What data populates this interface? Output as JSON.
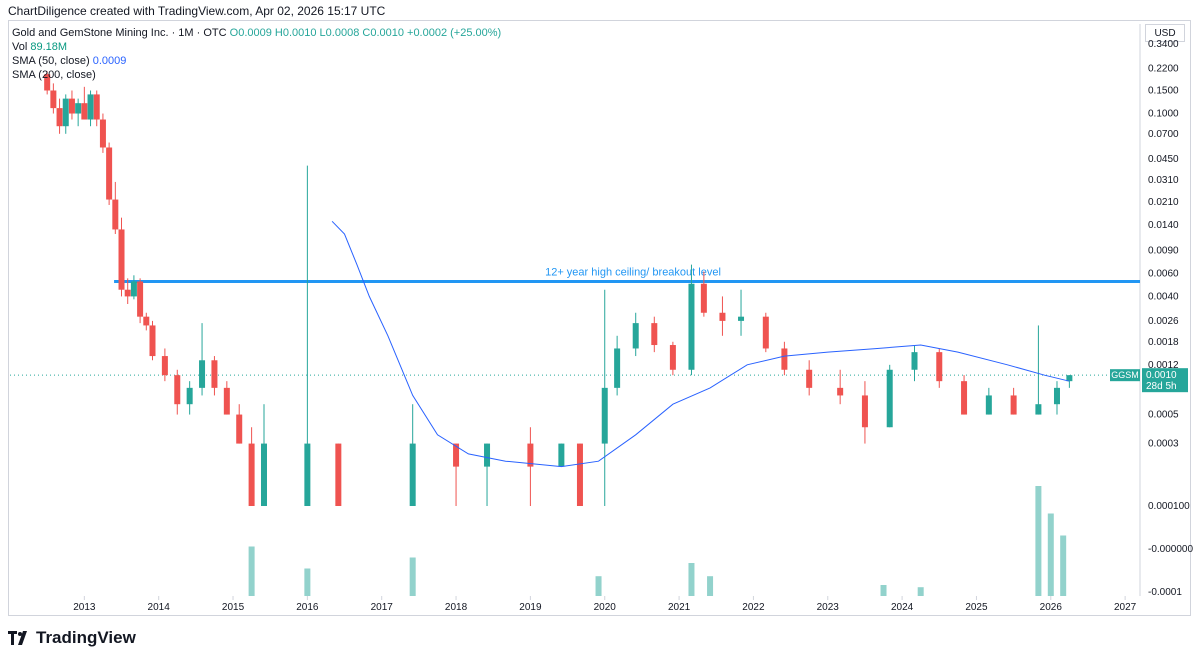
{
  "header": {
    "caption": "ChartDiligence created with TradingView.com, Apr 02, 2026 15:17 UTC"
  },
  "legend": {
    "symbol_line_prefix": "Gold and GemStone Mining Inc. · 1M · OTC",
    "ohlc": "O0.0009 H0.0010 L0.0008 C0.0010 +0.0002 (+25.00%)",
    "vol_label": "Vol",
    "vol_value": "89.18M",
    "sma50_label": "SMA (50, close)",
    "sma50_value": "0.0009",
    "sma200_label": "SMA (200, close)"
  },
  "price_axis": {
    "currency": "USD",
    "ticker_badge": "GGSM",
    "last_price": "0.0010",
    "countdown": "28d 5h"
  },
  "annotation": {
    "text": "12+ year high ceiling/ breakout level"
  },
  "footer": {
    "brand": "TradingView"
  },
  "colors": {
    "up": "#26a69a",
    "down": "#ef5350",
    "sma": "#2962ff",
    "level": "#2196f3"
  },
  "chart_data": {
    "type": "candlestick",
    "title": "Gold and GemStone Mining Inc. · 1M · OTC",
    "y_scale": "log",
    "y_ticks": [
      "0.3400",
      "0.2200",
      "0.1500",
      "0.1000",
      "0.0700",
      "0.0450",
      "0.0310",
      "0.0210",
      "0.0140",
      "0.0090",
      "0.0060",
      "0.0040",
      "0.0026",
      "0.0018",
      "0.0012",
      "0.0005",
      "0.0003",
      "0.000100",
      "-0.000000",
      "-0.0001"
    ],
    "x_ticks": [
      "2013",
      "2014",
      "2015",
      "2016",
      "2017",
      "2018",
      "2019",
      "2020",
      "2021",
      "2022",
      "2023",
      "2024",
      "2025",
      "2026",
      "2027"
    ],
    "horizontal_level": 0.0052,
    "last_close": 0.001,
    "candles": [
      {
        "t": "2012-07",
        "o": 0.2,
        "h": 0.21,
        "l": 0.14,
        "c": 0.15
      },
      {
        "t": "2012-08",
        "o": 0.15,
        "h": 0.17,
        "l": 0.1,
        "c": 0.11
      },
      {
        "t": "2012-09",
        "o": 0.11,
        "h": 0.13,
        "l": 0.07,
        "c": 0.08
      },
      {
        "t": "2012-10",
        "o": 0.08,
        "h": 0.14,
        "l": 0.07,
        "c": 0.13
      },
      {
        "t": "2012-11",
        "o": 0.13,
        "h": 0.15,
        "l": 0.09,
        "c": 0.1
      },
      {
        "t": "2012-12",
        "o": 0.1,
        "h": 0.13,
        "l": 0.08,
        "c": 0.12
      },
      {
        "t": "2013-01",
        "o": 0.12,
        "h": 0.16,
        "l": 0.09,
        "c": 0.09
      },
      {
        "t": "2013-02",
        "o": 0.09,
        "h": 0.15,
        "l": 0.08,
        "c": 0.14
      },
      {
        "t": "2013-03",
        "o": 0.14,
        "h": 0.15,
        "l": 0.08,
        "c": 0.09
      },
      {
        "t": "2013-04",
        "o": 0.09,
        "h": 0.1,
        "l": 0.05,
        "c": 0.055
      },
      {
        "t": "2013-05",
        "o": 0.055,
        "h": 0.06,
        "l": 0.02,
        "c": 0.022
      },
      {
        "t": "2013-06",
        "o": 0.022,
        "h": 0.03,
        "l": 0.012,
        "c": 0.013
      },
      {
        "t": "2013-07",
        "o": 0.013,
        "h": 0.016,
        "l": 0.004,
        "c": 0.0045
      },
      {
        "t": "2013-08",
        "o": 0.0045,
        "h": 0.0055,
        "l": 0.0035,
        "c": 0.004
      },
      {
        "t": "2013-09",
        "o": 0.004,
        "h": 0.0058,
        "l": 0.0038,
        "c": 0.0052
      },
      {
        "t": "2013-10",
        "o": 0.0052,
        "h": 0.0055,
        "l": 0.0025,
        "c": 0.0028
      },
      {
        "t": "2013-11",
        "o": 0.0028,
        "h": 0.003,
        "l": 0.0022,
        "c": 0.0024
      },
      {
        "t": "2013-12",
        "o": 0.0024,
        "h": 0.0026,
        "l": 0.0013,
        "c": 0.0014
      },
      {
        "t": "2014-02",
        "o": 0.0014,
        "h": 0.0016,
        "l": 0.0009,
        "c": 0.001
      },
      {
        "t": "2014-04",
        "o": 0.001,
        "h": 0.0011,
        "l": 0.0005,
        "c": 0.0006
      },
      {
        "t": "2014-06",
        "o": 0.0006,
        "h": 0.0009,
        "l": 0.0005,
        "c": 0.0008
      },
      {
        "t": "2014-08",
        "o": 0.0008,
        "h": 0.0025,
        "l": 0.0007,
        "c": 0.0013
      },
      {
        "t": "2014-10",
        "o": 0.0013,
        "h": 0.0014,
        "l": 0.0007,
        "c": 0.0008
      },
      {
        "t": "2014-12",
        "o": 0.0008,
        "h": 0.0009,
        "l": 0.0005,
        "c": 0.0005
      },
      {
        "t": "2015-02",
        "o": 0.0005,
        "h": 0.0006,
        "l": 0.0003,
        "c": 0.0003
      },
      {
        "t": "2015-04",
        "o": 0.0003,
        "h": 0.0004,
        "l": 0.0001,
        "c": 0.0001
      },
      {
        "t": "2015-06",
        "o": 0.0001,
        "h": 0.0006,
        "l": 0.0001,
        "c": 0.0003
      },
      {
        "t": "2016-01",
        "o": 0.0001,
        "h": 0.04,
        "l": 0.0001,
        "c": 0.0003
      },
      {
        "t": "2016-06",
        "o": 0.0003,
        "h": 0.0003,
        "l": 0.0001,
        "c": 0.0001
      },
      {
        "t": "2017-06",
        "o": 0.0001,
        "h": 0.0006,
        "l": 0.0001,
        "c": 0.0003
      },
      {
        "t": "2018-01",
        "o": 0.0003,
        "h": 0.0003,
        "l": 0.0001,
        "c": 0.0002
      },
      {
        "t": "2018-06",
        "o": 0.0002,
        "h": 0.0003,
        "l": 0.0001,
        "c": 0.0003
      },
      {
        "t": "2019-01",
        "o": 0.0003,
        "h": 0.0004,
        "l": 0.0001,
        "c": 0.0002
      },
      {
        "t": "2019-06",
        "o": 0.0002,
        "h": 0.0003,
        "l": 0.0002,
        "c": 0.0003
      },
      {
        "t": "2019-09",
        "o": 0.0003,
        "h": 0.0003,
        "l": 0.0001,
        "c": 0.0001
      },
      {
        "t": "2020-01",
        "o": 0.0003,
        "h": 0.0045,
        "l": 0.0001,
        "c": 0.0008
      },
      {
        "t": "2020-03",
        "o": 0.0008,
        "h": 0.002,
        "l": 0.0007,
        "c": 0.0016
      },
      {
        "t": "2020-06",
        "o": 0.0016,
        "h": 0.003,
        "l": 0.0014,
        "c": 0.0025
      },
      {
        "t": "2020-09",
        "o": 0.0025,
        "h": 0.0028,
        "l": 0.0015,
        "c": 0.0017
      },
      {
        "t": "2020-12",
        "o": 0.0017,
        "h": 0.0018,
        "l": 0.001,
        "c": 0.0011
      },
      {
        "t": "2021-03",
        "o": 0.0011,
        "h": 0.007,
        "l": 0.001,
        "c": 0.005
      },
      {
        "t": "2021-05",
        "o": 0.005,
        "h": 0.0062,
        "l": 0.0028,
        "c": 0.003
      },
      {
        "t": "2021-08",
        "o": 0.003,
        "h": 0.004,
        "l": 0.002,
        "c": 0.0026
      },
      {
        "t": "2021-11",
        "o": 0.0026,
        "h": 0.0045,
        "l": 0.002,
        "c": 0.0028
      },
      {
        "t": "2022-03",
        "o": 0.0028,
        "h": 0.003,
        "l": 0.0015,
        "c": 0.0016
      },
      {
        "t": "2022-06",
        "o": 0.0016,
        "h": 0.0018,
        "l": 0.001,
        "c": 0.0011
      },
      {
        "t": "2022-10",
        "o": 0.0011,
        "h": 0.0013,
        "l": 0.0007,
        "c": 0.0008
      },
      {
        "t": "2023-03",
        "o": 0.0008,
        "h": 0.0011,
        "l": 0.0006,
        "c": 0.0007
      },
      {
        "t": "2023-07",
        "o": 0.0007,
        "h": 0.0009,
        "l": 0.0003,
        "c": 0.0004
      },
      {
        "t": "2023-11",
        "o": 0.0004,
        "h": 0.0012,
        "l": 0.0004,
        "c": 0.0011
      },
      {
        "t": "2024-03",
        "o": 0.0011,
        "h": 0.0017,
        "l": 0.0009,
        "c": 0.0015
      },
      {
        "t": "2024-07",
        "o": 0.0015,
        "h": 0.0016,
        "l": 0.0008,
        "c": 0.0009
      },
      {
        "t": "2024-11",
        "o": 0.0009,
        "h": 0.001,
        "l": 0.0005,
        "c": 0.0005
      },
      {
        "t": "2025-03",
        "o": 0.0005,
        "h": 0.0008,
        "l": 0.0005,
        "c": 0.0007
      },
      {
        "t": "2025-07",
        "o": 0.0007,
        "h": 0.0008,
        "l": 0.0005,
        "c": 0.0005
      },
      {
        "t": "2025-11",
        "o": 0.0005,
        "h": 0.0024,
        "l": 0.0005,
        "c": 0.0006
      },
      {
        "t": "2026-02",
        "o": 0.0006,
        "h": 0.0009,
        "l": 0.0005,
        "c": 0.0008
      },
      {
        "t": "2026-04",
        "o": 0.0009,
        "h": 0.001,
        "l": 0.0008,
        "c": 0.001
      }
    ],
    "sma200": [
      {
        "t": "2016-05",
        "v": 0.015
      },
      {
        "t": "2016-07",
        "v": 0.012
      },
      {
        "t": "2016-09",
        "v": 0.007
      },
      {
        "t": "2016-11",
        "v": 0.004
      },
      {
        "t": "2017-02",
        "v": 0.002
      },
      {
        "t": "2017-06",
        "v": 0.0007
      },
      {
        "t": "2017-10",
        "v": 0.00035
      },
      {
        "t": "2018-03",
        "v": 0.00025
      },
      {
        "t": "2018-09",
        "v": 0.00022
      },
      {
        "t": "2019-06",
        "v": 0.0002
      },
      {
        "t": "2019-12",
        "v": 0.00022
      },
      {
        "t": "2020-06",
        "v": 0.00035
      },
      {
        "t": "2020-12",
        "v": 0.0006
      },
      {
        "t": "2021-06",
        "v": 0.0008
      },
      {
        "t": "2021-12",
        "v": 0.0012
      },
      {
        "t": "2022-06",
        "v": 0.0014
      },
      {
        "t": "2023-01",
        "v": 0.0015
      },
      {
        "t": "2023-09",
        "v": 0.0016
      },
      {
        "t": "2024-04",
        "v": 0.0017
      },
      {
        "t": "2024-10",
        "v": 0.0015
      },
      {
        "t": "2025-06",
        "v": 0.0012
      },
      {
        "t": "2025-12",
        "v": 0.001
      },
      {
        "t": "2026-04",
        "v": 0.0009
      }
    ],
    "volume": [
      {
        "t": "2015-04",
        "v": 0.45
      },
      {
        "t": "2016-01",
        "v": 0.25
      },
      {
        "t": "2017-06",
        "v": 0.35
      },
      {
        "t": "2019-12",
        "v": 0.18
      },
      {
        "t": "2021-03",
        "v": 0.3
      },
      {
        "t": "2021-06",
        "v": 0.18
      },
      {
        "t": "2023-10",
        "v": 0.1
      },
      {
        "t": "2024-04",
        "v": 0.08
      },
      {
        "t": "2025-11",
        "v": 1.0
      },
      {
        "t": "2026-01",
        "v": 0.75
      },
      {
        "t": "2026-03",
        "v": 0.55
      }
    ]
  }
}
